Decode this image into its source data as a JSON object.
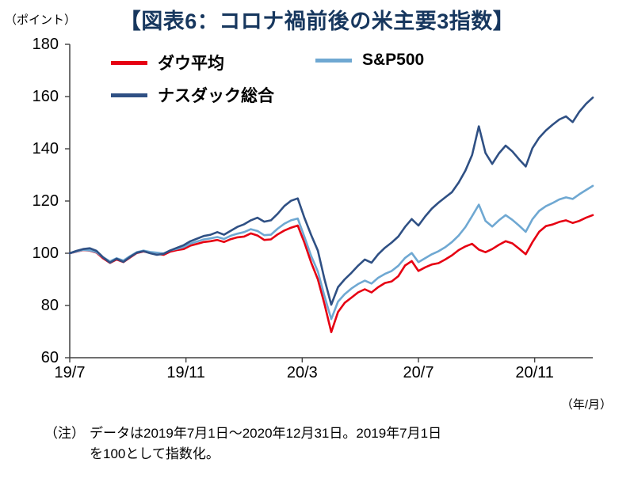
{
  "chart_data": {
    "type": "line",
    "title": "【図表6：コロナ禍前後の米主要3指数】",
    "y_unit_label": "（ポイント）",
    "x_unit_label": "（年/月）",
    "ylim": [
      60,
      180
    ],
    "yticks": [
      60,
      80,
      100,
      120,
      140,
      160,
      180
    ],
    "x_months_range": [
      0,
      18
    ],
    "xticks": [
      {
        "label": "19/7",
        "month": 0
      },
      {
        "label": "19/11",
        "month": 4
      },
      {
        "label": "20/3",
        "month": 8
      },
      {
        "label": "20/7",
        "month": 12
      },
      {
        "label": "20/11",
        "month": 16
      }
    ],
    "grid": false,
    "legend_position": "top-inside",
    "series": [
      {
        "name": "ダウ平均",
        "slug": "dow-average",
        "color": "#e60012",
        "values": [
          100,
          100.6,
          101.2,
          101,
          100.2,
          98,
          96.3,
          97.6,
          96.6,
          98.4,
          100.1,
          100.7,
          100.2,
          99.8,
          99.4,
          100.6,
          101.2,
          101.6,
          102.9,
          103.6,
          104.3,
          104.6,
          105.1,
          104.3,
          105.4,
          106.1,
          106.4,
          107.6,
          106.8,
          105.1,
          105.3,
          107.2,
          108.7,
          109.8,
          110.6,
          104,
          96.5,
          90,
          80.5,
          69.8,
          77.5,
          81,
          83,
          85,
          86.2,
          85,
          87,
          88.6,
          89.2,
          91.2,
          95.3,
          97,
          93.2,
          94.6,
          95.7,
          96.2,
          97.6,
          99.2,
          101.2,
          102.6,
          103.6,
          101.4,
          100.4,
          101.6,
          103.2,
          104.6,
          103.8,
          101.8,
          99.6,
          104.2,
          108.2,
          110.4,
          111,
          112,
          112.6,
          111.6,
          112.4,
          113.6,
          114.6
        ]
      },
      {
        "name": "S&P500",
        "slug": "sp500",
        "color": "#6fa8d2",
        "values": [
          100,
          100.7,
          101.3,
          101.1,
          100.4,
          98.4,
          96.9,
          98.1,
          97.2,
          98.9,
          100.4,
          101,
          100.5,
          100.2,
          99.9,
          101.1,
          101.7,
          102.4,
          103.7,
          104.5,
          105.3,
          105.7,
          106.2,
          105.5,
          106.7,
          107.5,
          108.1,
          109.2,
          108.5,
          106.9,
          107.1,
          109.4,
          111.3,
          112.6,
          113.3,
          106.2,
          99,
          93,
          83.5,
          74.8,
          81.5,
          84.3,
          86.5,
          88.2,
          89.5,
          88.4,
          90.6,
          92.1,
          93.2,
          95.2,
          98.2,
          100.1,
          96.6,
          98.1,
          99.6,
          100.8,
          102.3,
          104.3,
          106.8,
          110,
          114.2,
          118.6,
          112.4,
          110.2,
          112.6,
          114.6,
          112.8,
          110.6,
          108.2,
          113,
          116.2,
          118,
          119.2,
          120.6,
          121.4,
          120.8,
          122.6,
          124.2,
          125.8
        ]
      },
      {
        "name": "ナスダック総合",
        "slug": "nasdaq-composite",
        "color": "#2f5084",
        "values": [
          100,
          100.9,
          101.6,
          101.9,
          100.9,
          98.4,
          96.4,
          97.9,
          96.7,
          98.6,
          100.2,
          100.8,
          100,
          99.4,
          99.8,
          101.1,
          102.1,
          103.1,
          104.6,
          105.6,
          106.6,
          107.1,
          108.1,
          107.1,
          108.6,
          110.1,
          111.1,
          112.6,
          113.6,
          112.1,
          112.6,
          115.1,
          118.1,
          120.1,
          121,
          113.5,
          107,
          101,
          90,
          80.3,
          87,
          90,
          92.5,
          95.2,
          97.6,
          96.4,
          99.6,
          102.1,
          104.1,
          106.4,
          110.1,
          113.1,
          110.6,
          114.1,
          117.1,
          119.4,
          121.4,
          123.4,
          127.1,
          131.6,
          137.6,
          148.6,
          138.4,
          134.2,
          138.2,
          141.2,
          139,
          136,
          133.2,
          140.2,
          144.2,
          147,
          149.2,
          151.2,
          152.4,
          150.2,
          154.2,
          157.2,
          159.6
        ]
      }
    ]
  },
  "note": {
    "prefix": "（注）",
    "line1": "データは2019年7月1日～2020年12月31日。2019年7月1日",
    "line2": "を100として指数化。"
  }
}
